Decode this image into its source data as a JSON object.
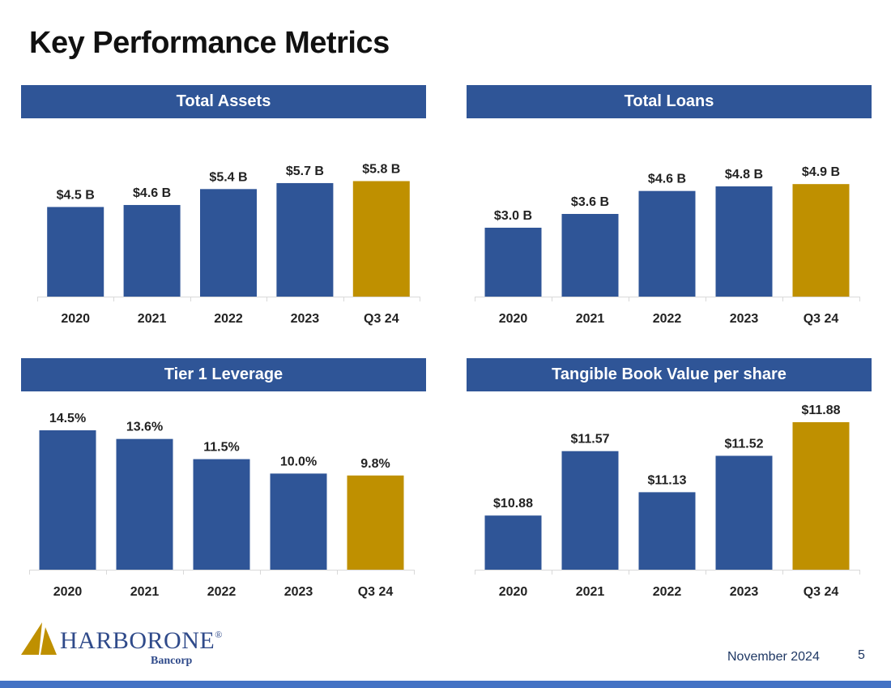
{
  "page": {
    "title": "Key Performance Metrics",
    "date": "November 2024",
    "page_number": "5",
    "logo": {
      "name": "HARBORONE",
      "registered": "®",
      "sub": "Bancorp"
    }
  },
  "colors": {
    "bar": "#2F5597",
    "highlight": "#BF9000",
    "header": "#2F5597",
    "footer": "#4472C4"
  },
  "chart_data": [
    {
      "type": "bar",
      "title": "Total Assets",
      "categories": [
        "2020",
        "2021",
        "2022",
        "2023",
        "Q3 24"
      ],
      "values": [
        4.5,
        4.6,
        5.4,
        5.7,
        5.8
      ],
      "labels": [
        "$4.5 B",
        "$4.6 B",
        "$5.4 B",
        "$5.7 B",
        "$5.8 B"
      ],
      "highlight_index": 4,
      "ylim": [
        0,
        7.0
      ]
    },
    {
      "type": "bar",
      "title": "Total Loans",
      "categories": [
        "2020",
        "2021",
        "2022",
        "2023",
        "Q3 24"
      ],
      "values": [
        3.0,
        3.6,
        4.6,
        4.8,
        4.9
      ],
      "labels": [
        "$3.0 B",
        "$3.6 B",
        "$4.6 B",
        "$4.8 B",
        "$4.9 B"
      ],
      "highlight_index": 4,
      "ylim": [
        0,
        6.0
      ]
    },
    {
      "type": "bar",
      "title": "Tier 1 Leverage",
      "categories": [
        "2020",
        "2021",
        "2022",
        "2023",
        "Q3 24"
      ],
      "values": [
        14.5,
        13.6,
        11.5,
        10.0,
        9.8
      ],
      "labels": [
        "14.5%",
        "13.6%",
        "11.5%",
        "10.0%",
        "9.8%"
      ],
      "highlight_index": 4,
      "ylim": [
        0,
        14.5
      ]
    },
    {
      "type": "bar",
      "title": "Tangible Book Value per share",
      "categories": [
        "2020",
        "2021",
        "2022",
        "2023",
        "Q3 24"
      ],
      "values": [
        10.88,
        11.57,
        11.13,
        11.52,
        11.88
      ],
      "labels": [
        "$10.88",
        "$11.57",
        "$11.13",
        "$11.52",
        "$11.88"
      ],
      "highlight_index": 4,
      "ylim": [
        10.3,
        11.88
      ]
    }
  ]
}
